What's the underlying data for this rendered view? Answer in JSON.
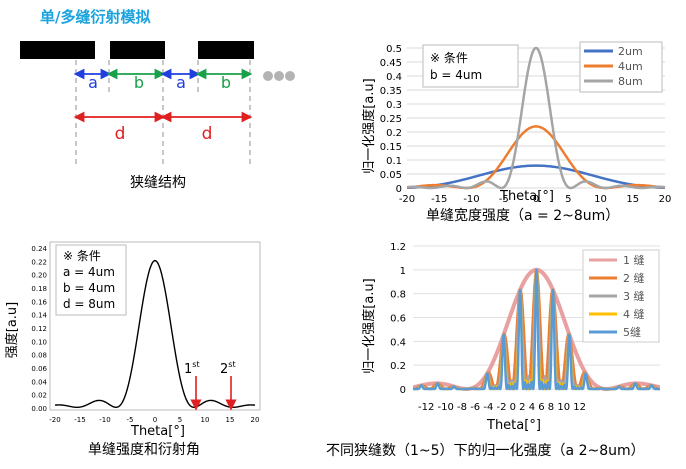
{
  "title": "单/多缝衍射模拟",
  "slit_diagram": {
    "caption": "狭缝结构",
    "label_a": "a",
    "label_b": "b",
    "label_d": "d",
    "colors": {
      "a": "#1f3fe0",
      "b": "#19a04a",
      "d": "#e02020",
      "bar": "#000000",
      "dots": "#b3b3b3"
    }
  },
  "charts": {
    "width_chart": {
      "caption": "单缝宽度强度（a = 2~8um）",
      "xlabel": "Theta[°]",
      "ylabel": "归一化强度[a.u]",
      "condition_title": "※ 条件",
      "condition_lines": [
        "b = 4um"
      ],
      "xticks": [
        "-20",
        "-15",
        "-10",
        "-5",
        "0",
        "5",
        "10",
        "15",
        "20"
      ],
      "yticks": [
        "0",
        "0.05",
        "0.1",
        "0.15",
        "0.2",
        "0.25",
        "0.3",
        "0.35",
        "0.4",
        "0.45",
        "0.5"
      ],
      "legend": [
        "2um",
        "4um",
        "8um"
      ]
    },
    "single_slit_chart": {
      "caption": "单缝强度和衍射角",
      "xlabel": "Theta[°]",
      "ylabel": "强度[a.u]",
      "condition_title": "※ 条件",
      "condition_lines": [
        "a = 4um",
        "b = 4um",
        "d = 8um"
      ],
      "xticks": [
        "-20",
        "-15",
        "-10",
        "-5",
        "0",
        "5",
        "10",
        "15",
        "20"
      ],
      "yticks": [
        "0.00",
        "0.02",
        "0.04",
        "0.06",
        "0.08",
        "0.10",
        "0.12",
        "0.14",
        "0.16",
        "0.18",
        "0.20",
        "0.22",
        "0.24"
      ],
      "annotation1": "1",
      "annotation1_sup": "st",
      "annotation2": "2",
      "annotation2_sup": "st"
    },
    "multi_slit_chart": {
      "caption": "不同狭缝数（1~5）下的归一化强度（a 2~8um）",
      "xlabel": "Theta[°]",
      "ylabel": "归一化强度[a.u]",
      "xtick_text": "-12 -10 -8 -6 -4 -2 0 2 4 6 8 10 12",
      "yticks": [
        "0",
        "0.2",
        "0.4",
        "0.6",
        "0.8",
        "1",
        "1.2"
      ],
      "legend": [
        "1 缝",
        "2 缝",
        "3 缝",
        "4 缝",
        "5缝"
      ]
    }
  },
  "chart_data": [
    {
      "type": "line",
      "title": "单缝宽度强度（a = 2~8um）",
      "xlabel": "Theta[°]",
      "ylabel": "归一化强度[a.u]",
      "xlim": [
        -20,
        20
      ],
      "ylim": [
        0,
        0.5
      ],
      "legend_placement": "top-right",
      "series": [
        {
          "name": "2um",
          "color": "#4472c4",
          "peak": 0.08,
          "x": [
            -20,
            -15,
            -10,
            -5,
            0,
            5,
            10,
            15,
            20
          ],
          "values": [
            0.0,
            0.012,
            0.04,
            0.068,
            0.08,
            0.068,
            0.04,
            0.012,
            0.0
          ]
        },
        {
          "name": "4um",
          "color": "#ed7d31",
          "peak": 0.22,
          "x": [
            -20,
            -10,
            -8,
            -5,
            0,
            5,
            8,
            10,
            20
          ],
          "values": [
            0.002,
            0.01,
            0.004,
            0.1,
            0.22,
            0.1,
            0.004,
            0.01,
            0.002
          ]
        },
        {
          "name": "8um",
          "color": "#a5a5a5",
          "peak": 0.5,
          "x": [
            -20,
            -5,
            -4,
            -2,
            0,
            2,
            4,
            5,
            20
          ],
          "values": [
            0.0,
            0.01,
            0.0,
            0.24,
            0.5,
            0.24,
            0.0,
            0.01,
            0.0
          ]
        }
      ]
    },
    {
      "type": "line",
      "title": "单缝强度和衍射角",
      "xlabel": "Theta[°]",
      "ylabel": "强度[a.u]",
      "xlim": [
        -20,
        20
      ],
      "ylim": [
        0,
        0.24
      ],
      "series": [
        {
          "name": "",
          "color": "#000000",
          "peak": 0.22,
          "x": [
            -20,
            -15,
            -12,
            -8,
            -5,
            0,
            5,
            8,
            12,
            15,
            20
          ],
          "values": [
            0.002,
            0.005,
            0.01,
            0.002,
            0.1,
            0.22,
            0.1,
            0.002,
            0.01,
            0.005,
            0.002
          ]
        }
      ],
      "annotations": [
        {
          "text": "1st",
          "x": 8
        },
        {
          "text": "2nd",
          "x": 15
        }
      ]
    },
    {
      "type": "line",
      "title": "不同狭缝数（1~5）下的归一化强度（a 2~8um）",
      "xlabel": "Theta[°]",
      "ylabel": "归一化强度[a.u]",
      "xlim": [
        -15,
        15
      ],
      "ylim": [
        0,
        1.2
      ],
      "legend_placement": "top-right",
      "series": [
        {
          "name": "1 缝",
          "color": "#e8a0a0",
          "N": 1,
          "x": [
            -8,
            -4,
            0,
            4,
            8
          ],
          "values": [
            0.02,
            0.55,
            1.0,
            0.55,
            0.02
          ]
        },
        {
          "name": "2 缝",
          "color": "#ed7d31",
          "N": 2,
          "x": [
            -6,
            -4,
            -2,
            0,
            2,
            4,
            6
          ],
          "values": [
            0.25,
            0.68,
            0.9,
            1.0,
            0.9,
            0.68,
            0.25
          ]
        },
        {
          "name": "3 缝",
          "color": "#a5a5a5",
          "N": 3,
          "x": [
            -4,
            -2,
            0,
            2,
            4
          ],
          "values": [
            0.68,
            0.9,
            1.0,
            0.9,
            0.68
          ]
        },
        {
          "name": "4 缝",
          "color": "#ffc000",
          "N": 4,
          "x": [
            -4,
            -2,
            0,
            2,
            4
          ],
          "values": [
            0.68,
            0.9,
            1.0,
            0.9,
            0.68
          ]
        },
        {
          "name": "5缝",
          "color": "#5b9bd5",
          "N": 5,
          "x": [
            -4,
            -2,
            0,
            2,
            4
          ],
          "values": [
            0.68,
            0.9,
            1.0,
            0.9,
            0.68
          ]
        }
      ]
    }
  ]
}
